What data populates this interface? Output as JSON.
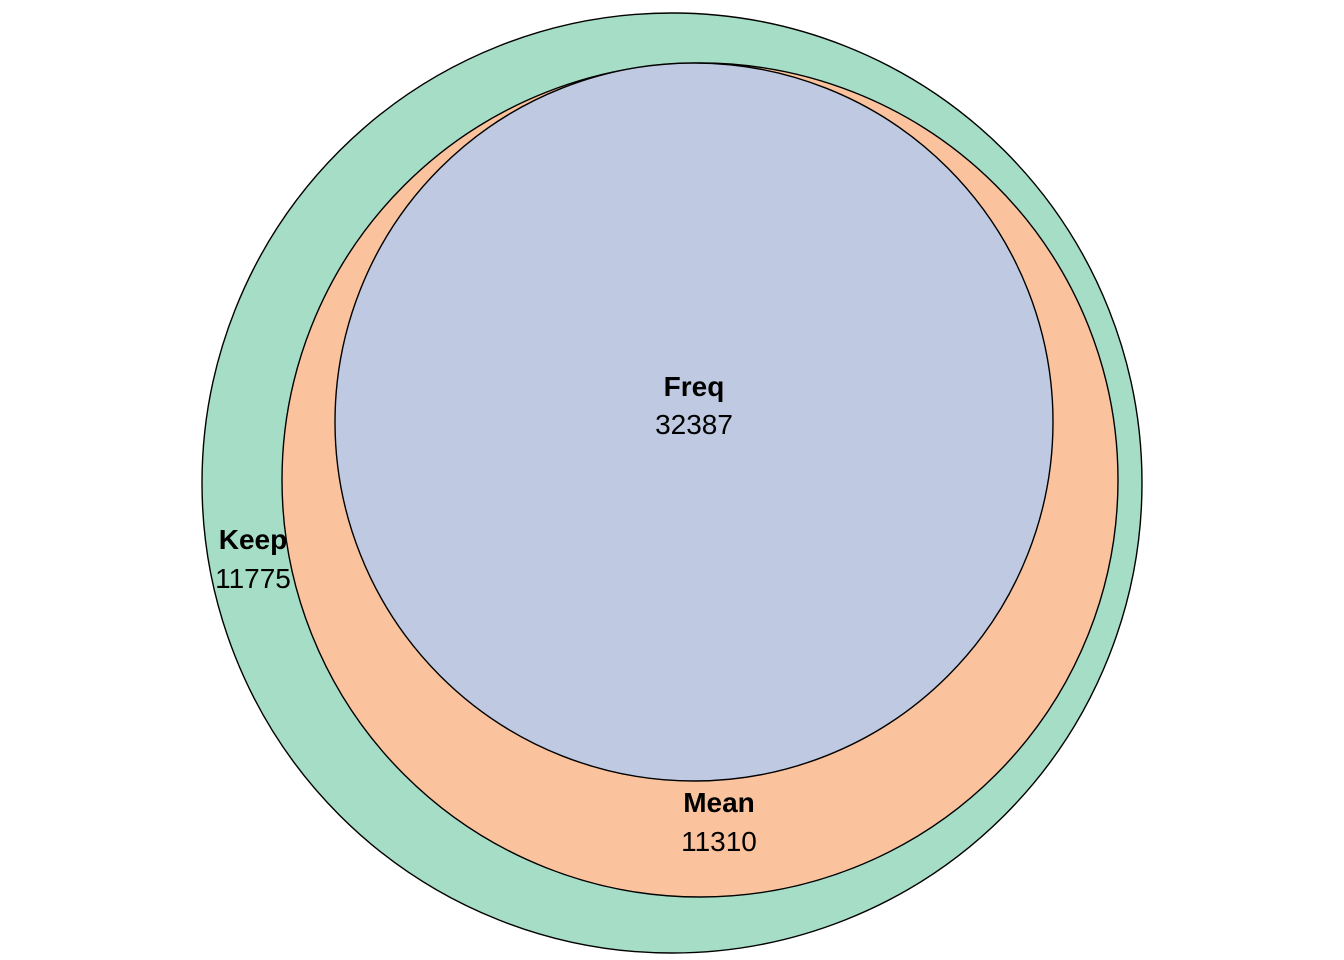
{
  "sets": [
    {
      "key": "keep",
      "name": "Keep",
      "count": "11775",
      "color": "#A6DDC6"
    },
    {
      "key": "mean",
      "name": "Mean",
      "count": "11310",
      "color": "#FAC39E"
    },
    {
      "key": "freq",
      "name": "Freq",
      "count": "32387",
      "color": "#BFCAE2"
    }
  ]
}
